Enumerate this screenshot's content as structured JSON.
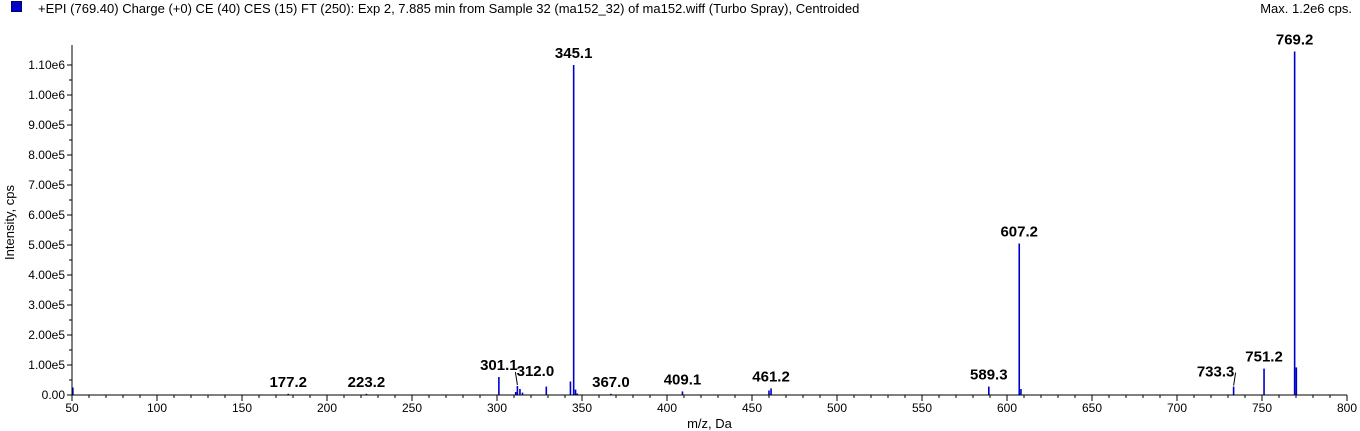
{
  "header": {
    "title": "+EPI (769.40) Charge (+0) CE (40) CES (15) FT (250): Exp 2, 7.885 min from Sample 32 (ma152_32) of ma152.wiff (Turbo Spray), Centroided",
    "max_label": "Max. 1.2e6 cps.",
    "swatch_color": "#0000cc"
  },
  "chart_data": {
    "type": "bar",
    "title": "",
    "xlabel": "m/z, Da",
    "ylabel": "Intensity, cps",
    "xlim": [
      50,
      800
    ],
    "ylim": [
      0,
      1150000
    ],
    "x_ticks": [
      "50",
      "100",
      "150",
      "200",
      "250",
      "300",
      "350",
      "400",
      "450",
      "500",
      "550",
      "600",
      "650",
      "700",
      "750",
      "800"
    ],
    "y_ticks": [
      "0.00",
      "1.00e5",
      "2.00e5",
      "3.00e5",
      "4.00e5",
      "5.00e5",
      "6.00e5",
      "7.00e5",
      "8.00e5",
      "9.00e5",
      "1.00e6",
      "1.10e6"
    ],
    "y_tick_values": [
      0,
      100000,
      200000,
      300000,
      400000,
      500000,
      600000,
      700000,
      800000,
      900000,
      1000000,
      1100000
    ],
    "bar_color": "#0000cc",
    "peaks": [
      {
        "mz": 50.5,
        "intensity": 25000
      },
      {
        "mz": 177.2,
        "intensity": 4000
      },
      {
        "mz": 223.2,
        "intensity": 4000
      },
      {
        "mz": 301.1,
        "intensity": 60000
      },
      {
        "mz": 311.0,
        "intensity": 10000
      },
      {
        "mz": 312.0,
        "intensity": 30000
      },
      {
        "mz": 313.5,
        "intensity": 20000
      },
      {
        "mz": 315.0,
        "intensity": 8000
      },
      {
        "mz": 329.0,
        "intensity": 28000
      },
      {
        "mz": 343.2,
        "intensity": 45000
      },
      {
        "mz": 345.1,
        "intensity": 1100000
      },
      {
        "mz": 346.2,
        "intensity": 18000
      },
      {
        "mz": 347.2,
        "intensity": 5000
      },
      {
        "mz": 367.0,
        "intensity": 4000
      },
      {
        "mz": 409.1,
        "intensity": 12000
      },
      {
        "mz": 460.0,
        "intensity": 15000
      },
      {
        "mz": 461.2,
        "intensity": 22000
      },
      {
        "mz": 589.3,
        "intensity": 28000
      },
      {
        "mz": 607.2,
        "intensity": 505000
      },
      {
        "mz": 608.2,
        "intensity": 20000
      },
      {
        "mz": 733.3,
        "intensity": 28000
      },
      {
        "mz": 751.2,
        "intensity": 88000
      },
      {
        "mz": 769.2,
        "intensity": 1145000
      },
      {
        "mz": 770.2,
        "intensity": 92000
      }
    ],
    "peak_labels": [
      {
        "text": "177.2",
        "mz": 177.2,
        "intensity": 4000
      },
      {
        "text": "223.2",
        "mz": 223.2,
        "intensity": 4000
      },
      {
        "text": "301.1",
        "mz": 301.1,
        "intensity": 60000
      },
      {
        "text": "312.0",
        "mz": 312.0,
        "intensity": 30000
      },
      {
        "text": "345.1",
        "mz": 345.1,
        "intensity": 1100000
      },
      {
        "text": "367.0",
        "mz": 367.0,
        "intensity": 4000
      },
      {
        "text": "409.1",
        "mz": 409.1,
        "intensity": 12000
      },
      {
        "text": "461.2",
        "mz": 461.2,
        "intensity": 22000
      },
      {
        "text": "589.3",
        "mz": 589.3,
        "intensity": 28000
      },
      {
        "text": "607.2",
        "mz": 607.2,
        "intensity": 505000
      },
      {
        "text": "733.3",
        "mz": 733.3,
        "intensity": 28000
      },
      {
        "text": "751.2",
        "mz": 751.2,
        "intensity": 88000
      },
      {
        "text": "769.2",
        "mz": 769.2,
        "intensity": 1145000
      }
    ]
  }
}
